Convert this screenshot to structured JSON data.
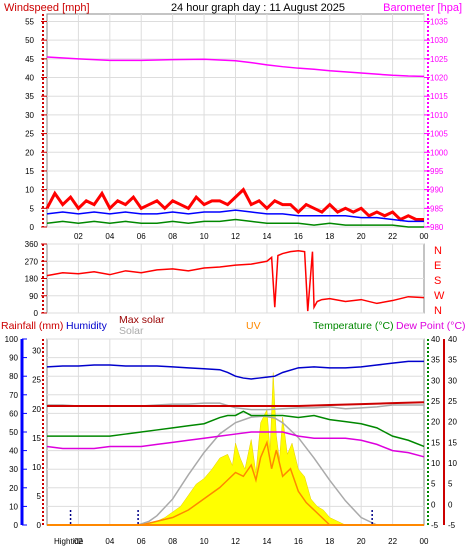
{
  "title": "24 hour graph day : 11 August 2025",
  "colors": {
    "wind_axis": "#cc0000",
    "baro": "#ff00ff",
    "rain": "#cc0000",
    "rain_axis": "#0000ff",
    "humidity": "#0000cc",
    "maxsolar": "#990000",
    "solar": "#aaaaaa",
    "uv": "#ff8800",
    "temp": "#008800",
    "dew": "#dd00dd",
    "wind": "#ff0000",
    "gust": "#ff0000",
    "avg": "#0000ff",
    "dir": "#ff0000",
    "fill": "#ffff00",
    "grid": "#dddddd"
  },
  "chart_data": [
    {
      "type": "line",
      "title": "24 hour graph day : 11 August 2025",
      "ylabel_left": "Windspeed [mph]",
      "ylabel_right": "Barometer [hpa]",
      "left_ticks": [
        "0",
        "5",
        "10",
        "15",
        "20",
        "25",
        "30",
        "35",
        "40",
        "45",
        "50",
        "55"
      ],
      "right_ticks": [
        "980",
        "985",
        "990",
        "995",
        "1000",
        "1005",
        "1010",
        "1015",
        "1020",
        "1025",
        "1030",
        "1035"
      ],
      "x_ticks": [
        "02",
        "04",
        "06",
        "08",
        "10",
        "12",
        "14",
        "16",
        "18",
        "20",
        "22",
        "00"
      ],
      "ylim_left": [
        0,
        57
      ],
      "ylim_right": [
        980,
        1037
      ],
      "xlim": [
        0,
        24
      ],
      "series": [
        {
          "key": "baro",
          "x": [
            0,
            2,
            4,
            6,
            8,
            10,
            12,
            13,
            14,
            15,
            16,
            17,
            18,
            19,
            20,
            21,
            22,
            23,
            24
          ],
          "y": [
            1025.5,
            1025.0,
            1024.6,
            1024.6,
            1024.8,
            1024.9,
            1024.5,
            1024.0,
            1023.4,
            1022.9,
            1022.5,
            1022.2,
            1021.8,
            1021.5,
            1021.2,
            1020.9,
            1020.6,
            1020.4,
            1020.3
          ]
        },
        {
          "key": "gust",
          "x": [
            0,
            0.5,
            1,
            1.5,
            2,
            2.5,
            3,
            3.5,
            4,
            4.5,
            5,
            5.5,
            6,
            6.5,
            7,
            7.5,
            8,
            8.5,
            9,
            9.5,
            10,
            10.5,
            11,
            11.5,
            12,
            12.5,
            13,
            13.5,
            14,
            14.5,
            15,
            15.5,
            16,
            16.5,
            17,
            17.5,
            18,
            18.5,
            19,
            19.5,
            20,
            20.5,
            21,
            21.5,
            22,
            22.5,
            23,
            23.5,
            24
          ],
          "y": [
            5,
            9,
            6,
            8,
            5,
            7,
            6,
            9,
            5,
            7,
            6,
            8,
            5,
            6,
            7,
            5,
            7,
            6,
            5,
            8,
            6,
            7,
            7,
            6,
            8,
            10,
            6,
            7,
            5,
            7,
            6,
            6,
            4,
            6,
            5,
            4,
            6,
            4,
            5,
            4,
            5,
            3,
            4,
            3,
            4,
            2,
            3,
            2,
            2
          ]
        },
        {
          "key": "avg",
          "x": [
            0,
            1,
            2,
            3,
            4,
            5,
            6,
            7,
            8,
            9,
            10,
            11,
            12,
            13,
            14,
            15,
            16,
            17,
            18,
            19,
            20,
            21,
            22,
            23,
            24
          ],
          "y": [
            3.5,
            4,
            3.5,
            4,
            3.5,
            4,
            3.5,
            3.5,
            4,
            3.5,
            4,
            4,
            4.5,
            4,
            3.5,
            3.5,
            3,
            3,
            3,
            3,
            2.5,
            2.5,
            2,
            1.5,
            1.5
          ]
        },
        {
          "key": "wind",
          "x": [
            0,
            1,
            2,
            3,
            4,
            5,
            6,
            7,
            8,
            9,
            10,
            11,
            12,
            13,
            14,
            15,
            16,
            17,
            18,
            19,
            20,
            21,
            22,
            23,
            24
          ],
          "y": [
            1,
            1.5,
            1,
            1.5,
            1,
            1.5,
            1,
            1,
            1.5,
            1,
            1.5,
            1.5,
            2,
            1.5,
            1,
            1,
            1,
            0.5,
            1,
            0.5,
            0.5,
            0.5,
            0.5,
            0,
            0
          ]
        }
      ]
    },
    {
      "type": "line",
      "left_ticks": [
        "0",
        "90",
        "180",
        "270",
        "360"
      ],
      "right_labels": [
        "N",
        "W",
        "S",
        "E",
        "N"
      ],
      "ylim": [
        0,
        360
      ],
      "xlim": [
        0,
        24
      ],
      "series": [
        {
          "key": "dir",
          "x": [
            0,
            1,
            2,
            3,
            4,
            5,
            6,
            7,
            8,
            9,
            10,
            11,
            12,
            13,
            14,
            14.3,
            14.5,
            14.7,
            15,
            15.5,
            16,
            16.4,
            16.6,
            16.9,
            17.0,
            17.2,
            17.5,
            18,
            19,
            20,
            21,
            22,
            23,
            24
          ],
          "y": [
            195,
            210,
            205,
            215,
            200,
            220,
            210,
            225,
            230,
            220,
            235,
            240,
            250,
            255,
            270,
            290,
            30,
            300,
            310,
            320,
            325,
            320,
            10,
            320,
            30,
            60,
            70,
            75,
            60,
            70,
            50,
            65,
            85,
            80
          ]
        }
      ]
    },
    {
      "type": "line",
      "labels": {
        "rain": "Rainfall (mm)",
        "humidity": "Humidity",
        "maxsolar": "Max solar",
        "solar": "Solar",
        "uv": "UV",
        "temp": "Temperature (°C)",
        "dew": "Dew Point (°C)",
        "hightide": "Hightide"
      },
      "left_outer_ticks": [
        "0",
        "10",
        "20",
        "30",
        "40",
        "50",
        "60",
        "70",
        "80",
        "90",
        "100"
      ],
      "left_inner_ticks": [
        "0",
        "5",
        "10",
        "15",
        "20",
        "25",
        "30"
      ],
      "right_inner_ticks": [
        "-5",
        "0",
        "5",
        "10",
        "15",
        "20",
        "25",
        "30",
        "35",
        "40"
      ],
      "right_outer_ticks": [
        "-5",
        "0",
        "5",
        "10",
        "15",
        "20",
        "25",
        "30",
        "35",
        "40"
      ],
      "x_ticks": [
        "02",
        "04",
        "06",
        "08",
        "10",
        "12",
        "14",
        "16",
        "18",
        "20",
        "22",
        "00"
      ],
      "xlim": [
        0,
        24
      ],
      "ylim_humidity": [
        0,
        100
      ],
      "ylim_temp": [
        -5,
        40
      ],
      "hightide_times": [
        1.5,
        5.8,
        20.7
      ],
      "series": [
        {
          "key": "humidity",
          "x": [
            0,
            1,
            2,
            3,
            4,
            5,
            6,
            7,
            8,
            9,
            10,
            11,
            11.5,
            12,
            12.5,
            13,
            13.5,
            14,
            14.5,
            15,
            16,
            17,
            18,
            19,
            20,
            21,
            22,
            23,
            24
          ],
          "y": [
            85,
            85.5,
            85.5,
            86,
            86,
            85.5,
            85.5,
            85.5,
            85,
            84.5,
            84,
            83.5,
            82,
            80,
            79,
            78.5,
            79,
            79.5,
            80,
            82,
            84.5,
            85,
            84.5,
            84.5,
            85,
            86,
            87,
            88,
            88
          ]
        },
        {
          "key": "solar",
          "x": [
            0,
            1,
            2,
            3,
            4,
            5,
            6,
            7,
            8,
            9,
            10,
            11,
            12,
            13,
            14,
            15,
            16,
            17,
            18,
            19,
            20,
            21,
            22,
            23,
            24
          ],
          "y": [
            64.5,
            64.5,
            64,
            64,
            64,
            64,
            64,
            64.5,
            65,
            65,
            65.5,
            65.5,
            63,
            62,
            62,
            62.5,
            63,
            63,
            63.5,
            62.5,
            63,
            63.5,
            64.5,
            64.5,
            64.5
          ]
        },
        {
          "key": "maxsolar",
          "x": [
            0,
            2,
            4,
            6,
            8,
            10,
            12,
            14,
            16,
            18,
            20,
            22,
            24
          ],
          "y": [
            64,
            64,
            64,
            64,
            64,
            64,
            64,
            64,
            64,
            64.5,
            65,
            65.5,
            66
          ]
        },
        {
          "key": "temp",
          "x": [
            0,
            1,
            2,
            3,
            4,
            5,
            6,
            7,
            8,
            9,
            10,
            11,
            11.5,
            12,
            12.5,
            13,
            13.5,
            14,
            14.5,
            15,
            16,
            17,
            18,
            19,
            20,
            21,
            22,
            23,
            24
          ],
          "y": [
            16.5,
            16.5,
            16.5,
            16.5,
            16.5,
            17,
            17.5,
            18,
            18.5,
            19,
            19.5,
            21,
            21.5,
            21.5,
            22.5,
            21.5,
            21.5,
            21.5,
            21.5,
            21.5,
            21,
            21.5,
            20.5,
            20,
            19.5,
            18.5,
            16.5,
            15.5,
            14
          ]
        },
        {
          "key": "dew",
          "x": [
            0,
            1,
            2,
            3,
            4,
            5,
            6,
            7,
            8,
            9,
            10,
            11,
            12,
            13,
            14,
            15,
            16,
            17,
            18,
            19,
            20,
            21,
            22,
            23,
            24
          ],
          "y": [
            14,
            13.5,
            13.5,
            13.5,
            14,
            14,
            14,
            14.5,
            15,
            15.5,
            16,
            16.5,
            17,
            17.5,
            17.5,
            17.5,
            16.5,
            16,
            16,
            16,
            15.5,
            14.5,
            13,
            12.5,
            11.5
          ]
        },
        {
          "key": "maxsolar_curve",
          "x": [
            5.8,
            6.5,
            7,
            8,
            9,
            10,
            11,
            12,
            13,
            13.8,
            14.5,
            15,
            16,
            17,
            18,
            19,
            20,
            21
          ],
          "y": [
            0,
            2,
            5,
            14,
            27,
            39,
            49,
            55,
            58,
            58.5,
            57.5,
            55,
            47,
            36,
            24,
            13,
            4,
            0
          ]
        },
        {
          "key": "solar_fill",
          "x": [
            6,
            6.5,
            7,
            7.5,
            8,
            8.5,
            9,
            9.5,
            10,
            10.5,
            11,
            11.5,
            11.8,
            12,
            12.3,
            12.6,
            13,
            13.3,
            13.6,
            14,
            14.2,
            14.4,
            14.6,
            14.8,
            15,
            15.3,
            15.6,
            16,
            16.4,
            16.8,
            17.2,
            17.6,
            18,
            18.5,
            19
          ],
          "y": [
            0,
            1,
            2,
            4,
            7,
            10,
            16,
            22,
            25,
            30,
            36,
            38,
            32,
            44,
            36,
            30,
            46,
            28,
            55,
            62,
            40,
            82,
            48,
            35,
            58,
            38,
            44,
            30,
            26,
            14,
            10,
            8,
            4,
            2,
            0
          ]
        },
        {
          "key": "uv",
          "x": [
            6,
            7,
            8,
            9,
            10,
            11,
            11.5,
            12,
            12.5,
            13,
            13.3,
            13.6,
            14,
            14.3,
            14.6,
            15,
            15.5,
            16,
            16.5,
            17,
            17.5,
            18
          ],
          "y": [
            0,
            0.5,
            1,
            2,
            3.5,
            5,
            6,
            7,
            6.5,
            8,
            6,
            9,
            11,
            7.5,
            10,
            6.5,
            7.5,
            4.5,
            3,
            2,
            1,
            0
          ]
        },
        {
          "key": "rain",
          "x": [
            0,
            24
          ],
          "y": [
            0,
            0
          ]
        }
      ]
    }
  ]
}
